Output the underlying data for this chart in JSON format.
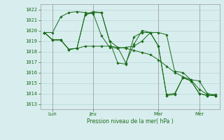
{
  "bg_color": "#d8eeee",
  "grid_color": "#b0cece",
  "line_color": "#1a6b1a",
  "marker_color": "#1a6b1a",
  "ylim": [
    1012.5,
    1022.5
  ],
  "yticks": [
    1013,
    1014,
    1015,
    1016,
    1017,
    1018,
    1019,
    1020,
    1021,
    1022
  ],
  "xlabel": "Pression niveau de la mer( hPa )",
  "day_labels": [
    "Lun",
    "Jeu",
    "Mar",
    "Mer"
  ],
  "series": [
    [
      1019.8,
      1019.8,
      1021.3,
      1021.7,
      1021.8,
      1021.7,
      1021.6,
      1019.5,
      1018.4,
      1018.3,
      1018.4,
      1018.5,
      1019.0,
      1019.8,
      1019.8,
      1019.6,
      1016.1,
      1016.0,
      1015.3,
      1015.2,
      1014.0,
      1013.8
    ],
    [
      1019.8,
      1019.1,
      1019.1,
      1018.2,
      1018.3,
      1018.5,
      1018.5,
      1018.5,
      1018.5,
      1018.4,
      1018.3,
      1018.1,
      1017.9,
      1017.7,
      1017.2,
      1016.6,
      1016.0,
      1015.6,
      1015.3,
      1014.4,
      1013.9,
      1013.9
    ],
    [
      1019.8,
      1019.1,
      1019.1,
      1018.2,
      1018.3,
      1021.5,
      1021.8,
      1021.7,
      1019.0,
      1018.4,
      1016.9,
      1018.7,
      1020.0,
      1019.8,
      1018.5,
      1013.9,
      1014.0,
      1015.5,
      1015.2,
      1014.0,
      1013.8,
      1013.8
    ],
    [
      1019.8,
      1019.1,
      1019.1,
      1018.2,
      1018.3,
      1021.5,
      1021.7,
      1021.7,
      1019.0,
      1016.9,
      1016.8,
      1019.4,
      1019.8,
      1019.8,
      1018.5,
      1013.8,
      1013.9,
      1015.5,
      1015.2,
      1014.0,
      1013.8,
      1013.8
    ]
  ],
  "xtick_positions": [
    1,
    6,
    14,
    19
  ],
  "vline_positions": [
    1,
    6,
    14,
    19
  ],
  "n_points": 22
}
